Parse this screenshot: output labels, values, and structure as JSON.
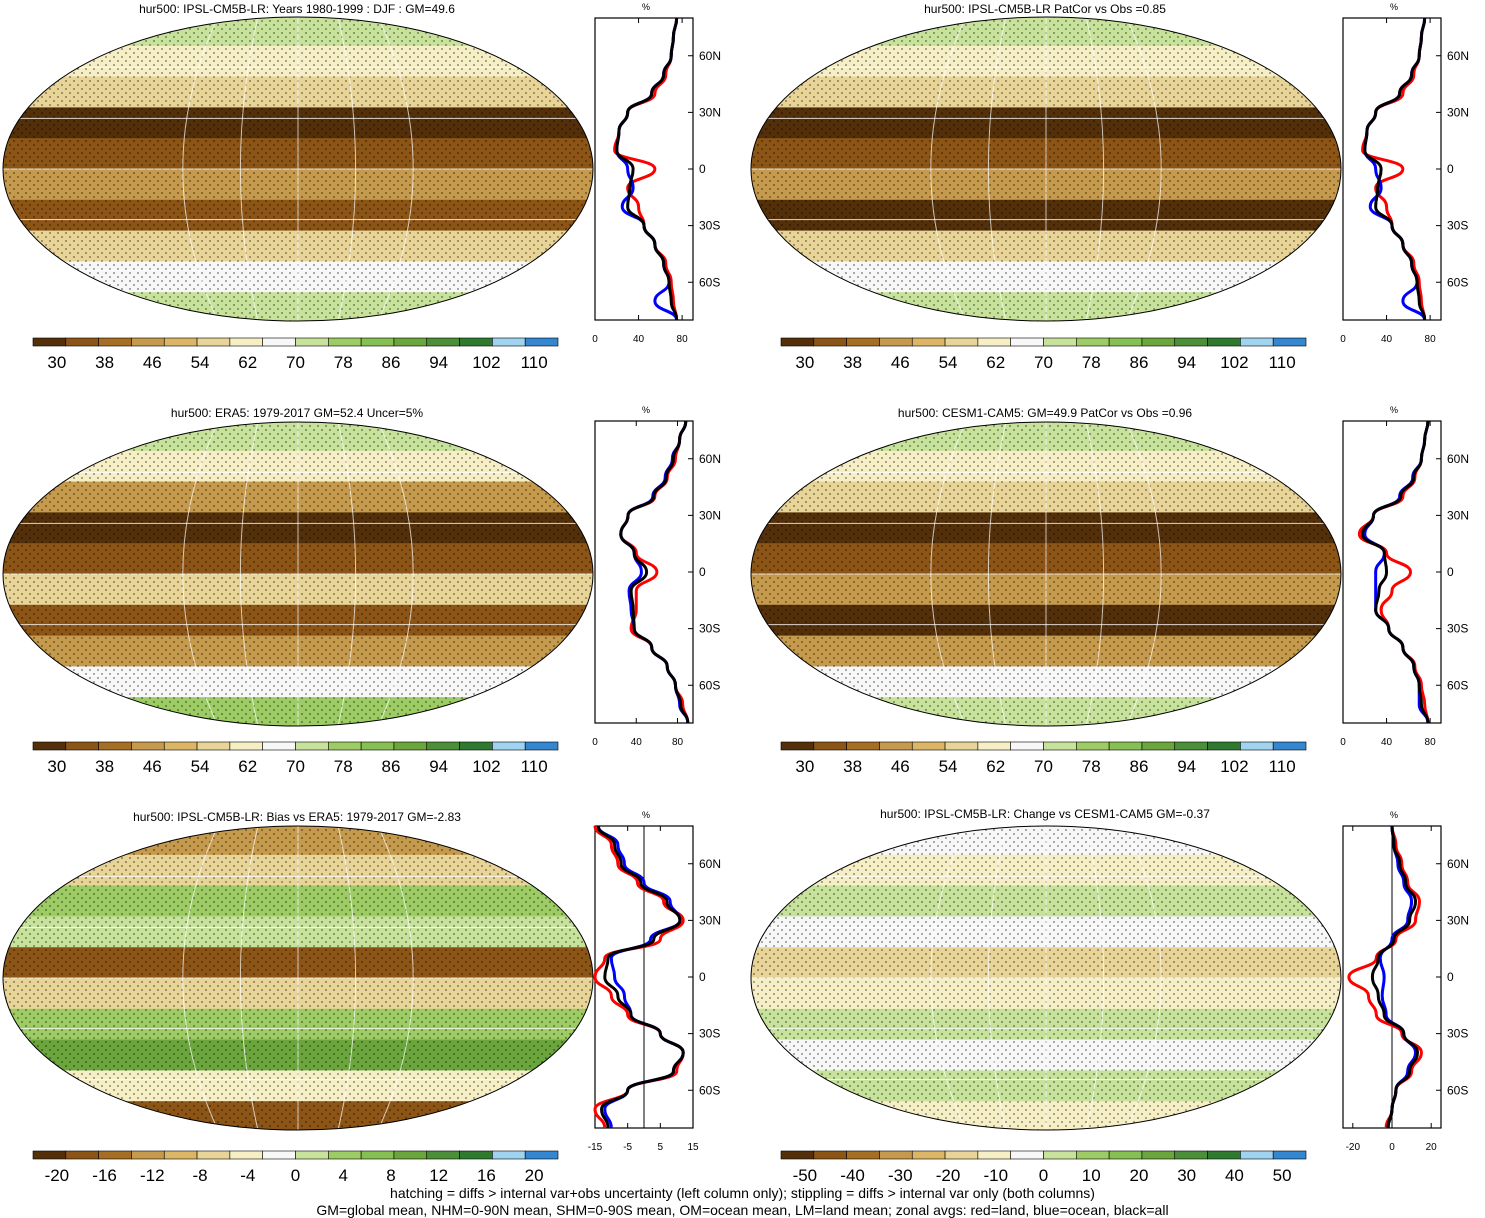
{
  "colors": {
    "brown_dark": "#54300a",
    "brown": "#8c5516",
    "tan": "#c69a4c",
    "light_tan": "#e8d497",
    "cream": "#f6efc6",
    "white": "#f7f7f7",
    "light_green": "#c7e29a",
    "green": "#9ccc63",
    "mid_green": "#6aa63c",
    "dark_green": "#2f7a2f",
    "light_blue": "#9fd3f0",
    "blue": "#3287d0",
    "land_line": "red",
    "ocean_line": "blue",
    "all_line": "black"
  },
  "chart_data": [
    {
      "id": "p1",
      "type": "heatmap",
      "title": "hur500: IPSL-CM5B-LR: Years 1980-1999 : DJF : GM=49.6",
      "colorbar_ticks": [
        "30",
        "38",
        "46",
        "54",
        "62",
        "70",
        "78",
        "86",
        "94",
        "102",
        "110"
      ],
      "zonal": {
        "xlabel": "%",
        "xticks": [
          "0",
          "40",
          "80"
        ],
        "xlim": [
          0,
          90
        ],
        "yticks": [
          "60N",
          "30N",
          "0",
          "30S",
          "60S"
        ],
        "lat": [
          80,
          70,
          60,
          50,
          40,
          30,
          20,
          10,
          0,
          -10,
          -20,
          -30,
          -40,
          -50,
          -60,
          -70,
          -80
        ],
        "land": [
          75,
          72,
          70,
          65,
          55,
          30,
          22,
          18,
          55,
          30,
          40,
          45,
          55,
          65,
          70,
          72,
          75
        ],
        "ocean": [
          75,
          72,
          70,
          63,
          52,
          30,
          22,
          20,
          30,
          35,
          25,
          45,
          55,
          63,
          68,
          55,
          75
        ],
        "all": [
          75,
          72,
          70,
          63,
          52,
          30,
          22,
          20,
          35,
          32,
          30,
          45,
          55,
          63,
          68,
          70,
          75
        ]
      }
    },
    {
      "id": "p2",
      "type": "heatmap",
      "title": "hur500: IPSL-CM5B-LR PatCor vs Obs =0.85",
      "colorbar_ticks": [
        "30",
        "38",
        "46",
        "54",
        "62",
        "70",
        "78",
        "86",
        "94",
        "102",
        "110"
      ],
      "zonal": {
        "xlabel": "%",
        "xticks": [
          "0",
          "40",
          "80"
        ],
        "xlim": [
          0,
          90
        ],
        "yticks": [
          "60N",
          "30N",
          "0",
          "30S",
          "60S"
        ],
        "lat": [
          80,
          70,
          60,
          50,
          40,
          30,
          20,
          10,
          0,
          -10,
          -20,
          -30,
          -40,
          -50,
          -60,
          -70,
          -80
        ],
        "land": [
          75,
          72,
          70,
          65,
          55,
          30,
          22,
          18,
          55,
          30,
          40,
          45,
          55,
          65,
          70,
          72,
          75
        ],
        "ocean": [
          75,
          72,
          70,
          63,
          52,
          30,
          22,
          20,
          30,
          35,
          25,
          45,
          55,
          63,
          68,
          55,
          75
        ],
        "all": [
          75,
          72,
          70,
          63,
          52,
          30,
          22,
          20,
          35,
          32,
          30,
          45,
          55,
          63,
          68,
          70,
          75
        ]
      }
    },
    {
      "id": "p3",
      "type": "heatmap",
      "title": "hur500: ERA5: 1979-2017 GM=52.4 Uncer=5%",
      "colorbar_ticks": [
        "30",
        "38",
        "46",
        "54",
        "62",
        "70",
        "78",
        "86",
        "94",
        "102",
        "110"
      ],
      "zonal": {
        "xlabel": "%",
        "xticks": [
          "0",
          "40",
          "80"
        ],
        "xlim": [
          0,
          95
        ],
        "yticks": [
          "60N",
          "30N",
          "0",
          "30S",
          "60S"
        ],
        "lat": [
          80,
          70,
          60,
          50,
          40,
          30,
          20,
          10,
          0,
          -10,
          -20,
          -30,
          -40,
          -50,
          -60,
          -70,
          -80
        ],
        "land": [
          88,
          82,
          78,
          70,
          58,
          32,
          25,
          40,
          60,
          40,
          40,
          35,
          55,
          70,
          78,
          85,
          90
        ],
        "ocean": [
          88,
          82,
          75,
          68,
          56,
          32,
          25,
          38,
          45,
          33,
          35,
          38,
          55,
          70,
          78,
          82,
          90
        ],
        "all": [
          88,
          82,
          76,
          69,
          57,
          32,
          25,
          38,
          50,
          35,
          37,
          38,
          55,
          70,
          78,
          83,
          90
        ]
      }
    },
    {
      "id": "p4",
      "type": "heatmap",
      "title": "hur500: CESM1-CAM5: GM=49.9 PatCor vs Obs =0.96",
      "colorbar_ticks": [
        "30",
        "38",
        "46",
        "54",
        "62",
        "70",
        "78",
        "86",
        "94",
        "102",
        "110"
      ],
      "zonal": {
        "xlabel": "%",
        "xticks": [
          "0",
          "40",
          "80"
        ],
        "xlim": [
          0,
          90
        ],
        "yticks": [
          "60N",
          "30N",
          "0",
          "30S",
          "60S"
        ],
        "lat": [
          80,
          70,
          60,
          50,
          40,
          30,
          20,
          10,
          0,
          -10,
          -20,
          -30,
          -40,
          -50,
          -60,
          -70,
          -80
        ],
        "land": [
          78,
          75,
          72,
          66,
          55,
          28,
          15,
          40,
          62,
          45,
          35,
          42,
          55,
          66,
          72,
          75,
          78
        ],
        "ocean": [
          78,
          75,
          72,
          64,
          52,
          28,
          20,
          38,
          30,
          30,
          30,
          42,
          55,
          65,
          70,
          70,
          78
        ],
        "all": [
          78,
          75,
          72,
          65,
          53,
          28,
          18,
          38,
          40,
          33,
          30,
          42,
          55,
          65,
          70,
          72,
          78
        ]
      }
    },
    {
      "id": "p5",
      "type": "heatmap",
      "title": "hur500: IPSL-CM5B-LR: Bias vs ERA5: 1979-2017 GM=-2.83",
      "colorbar_ticks": [
        "-20",
        "-16",
        "-12",
        "-8",
        "-4",
        "0",
        "4",
        "8",
        "12",
        "16",
        "20"
      ],
      "zonal": {
        "xlabel": "%",
        "xticks": [
          "-15",
          "-5",
          "5",
          "15"
        ],
        "xlim": [
          -15,
          15
        ],
        "yticks": [
          "60N",
          "30N",
          "0",
          "30S",
          "60S"
        ],
        "lat": [
          80,
          70,
          60,
          50,
          40,
          30,
          20,
          10,
          0,
          -10,
          -20,
          -30,
          -40,
          -50,
          -60,
          -70,
          -80
        ],
        "land": [
          -15,
          -10,
          -8,
          -2,
          6,
          12,
          5,
          -12,
          -15,
          -10,
          -5,
          5,
          12,
          10,
          -5,
          -15,
          -12
        ],
        "ocean": [
          -14,
          -8,
          -6,
          0,
          8,
          11,
          2,
          -10,
          -9,
          -6,
          -4,
          5,
          12,
          9,
          -5,
          -12,
          -10
        ],
        "all": [
          -14,
          -9,
          -7,
          -1,
          7,
          11,
          3,
          -11,
          -12,
          -8,
          -4,
          5,
          12,
          9,
          -5,
          -13,
          -11
        ]
      }
    },
    {
      "id": "p6",
      "type": "heatmap",
      "title": "hur500: IPSL-CM5B-LR: Change vs CESM1-CAM5 GM=-0.37",
      "colorbar_ticks": [
        "-50",
        "-40",
        "-30",
        "-20",
        "-10",
        "0",
        "10",
        "20",
        "30",
        "40",
        "50"
      ],
      "zonal": {
        "xlabel": "%",
        "xticks": [
          "-20",
          "0",
          "20"
        ],
        "xlim": [
          -25,
          25
        ],
        "yticks": [
          "60N",
          "30N",
          "0",
          "30S",
          "60S"
        ],
        "lat": [
          80,
          70,
          60,
          50,
          40,
          30,
          20,
          10,
          0,
          -10,
          -20,
          -30,
          -40,
          -50,
          -60,
          -70,
          -80
        ],
        "land": [
          0,
          2,
          5,
          8,
          14,
          12,
          2,
          -8,
          -22,
          -12,
          -8,
          5,
          15,
          10,
          2,
          0,
          -3
        ],
        "ocean": [
          0,
          1,
          3,
          6,
          10,
          8,
          0,
          -6,
          -4,
          -5,
          -3,
          6,
          12,
          8,
          2,
          0,
          -2
        ],
        "all": [
          0,
          1,
          4,
          7,
          12,
          9,
          1,
          -7,
          -10,
          -7,
          -4,
          6,
          13,
          9,
          2,
          0,
          -2
        ]
      }
    }
  ],
  "footnotes": {
    "line1": "hatching = diffs > internal var+obs uncertainty (left column only); stippling = diffs > internal var only (both columns)",
    "line2": "GM=global mean, NHM=0-90N mean, SHM=0-90S mean, OM=ocean mean, LM=land mean; zonal avgs: red=land, blue=ocean, black=all"
  }
}
